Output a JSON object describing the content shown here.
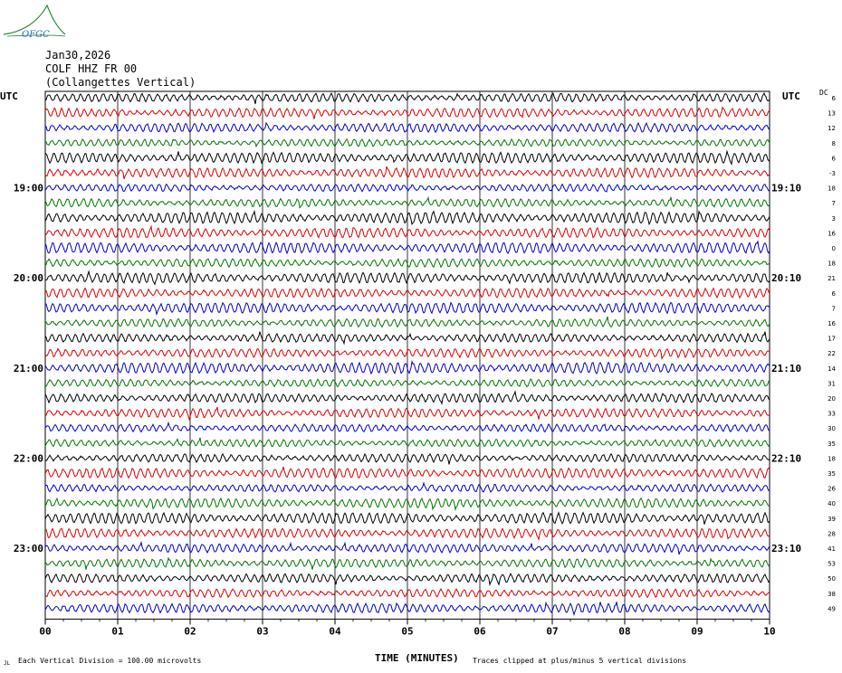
{
  "logo": {
    "text": "OFGC",
    "color": "#2a6fb0",
    "arc_color": "#2e8b3a"
  },
  "header": {
    "date": "Jan30,2026",
    "station": "COLF HHZ FR 00",
    "location": "(Collangettes Vertical)"
  },
  "utc_left": "UTC",
  "utc_right": "UTC",
  "dc_label": "DC",
  "footer": {
    "xlabel": "TIME (MINUTES)",
    "division_note": "Each Vertical Division =  100.00 microvolts",
    "clip_note": "Traces clipped at plus/minus 5 vertical divisions",
    "corner_mark": "JL"
  },
  "chart_data": {
    "type": "line",
    "title": "COLF HHZ FR 00 (Collangettes Vertical)",
    "date": "Jan30,2026",
    "xlabel": "TIME (MINUTES)",
    "x_range": [
      0,
      10
    ],
    "x_ticks": [
      "00",
      "01",
      "02",
      "03",
      "04",
      "05",
      "06",
      "07",
      "08",
      "09",
      "10"
    ],
    "grid": true,
    "trace_colors": [
      "#000000",
      "#dd0000",
      "#0000cc",
      "#007700"
    ],
    "left_time_labels": [
      {
        "row": 6,
        "label": "19:00"
      },
      {
        "row": 12,
        "label": "20:00"
      },
      {
        "row": 18,
        "label": "21:00"
      },
      {
        "row": 24,
        "label": "22:00"
      },
      {
        "row": 30,
        "label": "23:00"
      }
    ],
    "right_time_labels": [
      {
        "row": 6,
        "label": "19:10"
      },
      {
        "row": 12,
        "label": "20:10"
      },
      {
        "row": 18,
        "label": "21:10"
      },
      {
        "row": 24,
        "label": "22:10"
      },
      {
        "row": 30,
        "label": "23:10"
      }
    ],
    "dc_offsets": [
      "6",
      "13",
      "12",
      "8",
      "6",
      "-3",
      "18",
      "7",
      "3",
      "16",
      "0",
      "18",
      "21",
      "6",
      "7",
      "16",
      "17",
      "22",
      "14",
      "31",
      "20",
      "33",
      "30",
      "35",
      "18",
      "35",
      "26",
      "40",
      "39",
      "28",
      "41",
      "53",
      "50",
      "38",
      "49"
    ]
  }
}
